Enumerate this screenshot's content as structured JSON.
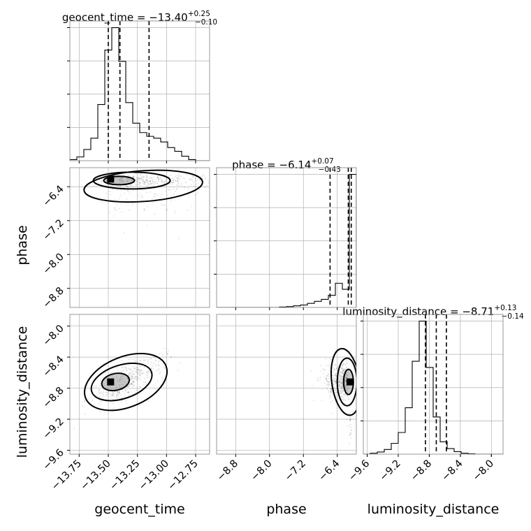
{
  "chart_data": {
    "type": "scatter",
    "description_kind": "corner plot (posterior samples)",
    "parameters": [
      {
        "name": "geocent_time",
        "median": -13.4,
        "plus": "+0.25",
        "minus": "−0.10",
        "title_prefix": "geocent_time = −13.40",
        "quantiles": [
          -13.5,
          -13.4,
          -13.15
        ],
        "range": [
          -13.83,
          -12.63
        ],
        "ticks": [
          -13.75,
          -13.5,
          -13.25,
          -13.0,
          -12.75
        ],
        "tick_labels": [
          "−13.75",
          "−13.50",
          "−13.25",
          "−13.00",
          "−12.75"
        ],
        "hist_bin_counts": [
          0.3,
          1.0,
          3.0,
          6.0,
          15.0,
          29.5,
          35.5,
          26.5,
          15.5,
          10.0,
          7.5,
          6.5,
          6.0,
          5.0,
          3.5,
          2.5,
          1.2,
          0.3,
          0,
          0
        ]
      },
      {
        "name": "phase",
        "median": -6.14,
        "plus": "+0.07",
        "minus": "−0.43",
        "title_prefix": "phase = −6.14",
        "quantiles": [
          -6.57,
          -6.14,
          -6.07
        ],
        "range": [
          -9.25,
          -5.95
        ],
        "ticks": [
          -8.8,
          -8.0,
          -7.2,
          -6.4
        ],
        "tick_labels": [
          "−8.8",
          "−8.0",
          "−7.2",
          "−6.4"
        ],
        "hist_bin_counts": [
          0,
          0,
          0,
          0,
          0,
          0,
          0,
          0,
          0,
          0.1,
          0.2,
          0.4,
          0.6,
          1.0,
          1.5,
          2.0,
          3.0,
          6.0,
          4.5,
          33.0
        ]
      },
      {
        "name": "luminosity_distance",
        "median": -8.71,
        "plus": "+0.13",
        "minus": "−0.14",
        "title_prefix": "luminosity_distance = −8.71",
        "quantiles": [
          -8.85,
          -8.71,
          -8.58
        ],
        "range": [
          -9.65,
          -7.85
        ],
        "ticks": [
          -9.6,
          -9.2,
          -8.8,
          -8.4,
          -8.0
        ],
        "tick_labels": [
          "−9.6",
          "−9.2",
          "−8.8",
          "−8.4",
          "−8.0"
        ],
        "hist_bin_counts": [
          0,
          0.3,
          0.7,
          1.5,
          3.5,
          7.0,
          15.0,
          30.0,
          43.0,
          28.0,
          12.0,
          4.0,
          1.8,
          0.8,
          0.3,
          0.1,
          0,
          0,
          0,
          0
        ]
      }
    ],
    "xlabels": [
      "geocent_time",
      "phase",
      "luminosity_distance"
    ],
    "ylabels": [
      "phase",
      "luminosity_distance"
    ],
    "grid": true,
    "contour_levels": 3,
    "colors": {
      "hist": "#000000",
      "scatter": "#000000",
      "contour": "#000000",
      "grid": "#b0b0b0",
      "frame": "#000000"
    },
    "density_modes": [
      {
        "x": "geocent_time",
        "y": "phase",
        "cx": -13.48,
        "cy": -6.22
      },
      {
        "x": "geocent_time",
        "y": "luminosity_distance",
        "cx": -13.48,
        "cy": -8.72
      },
      {
        "x": "phase",
        "y": "luminosity_distance",
        "cx": -6.1,
        "cy": -8.72
      }
    ]
  }
}
